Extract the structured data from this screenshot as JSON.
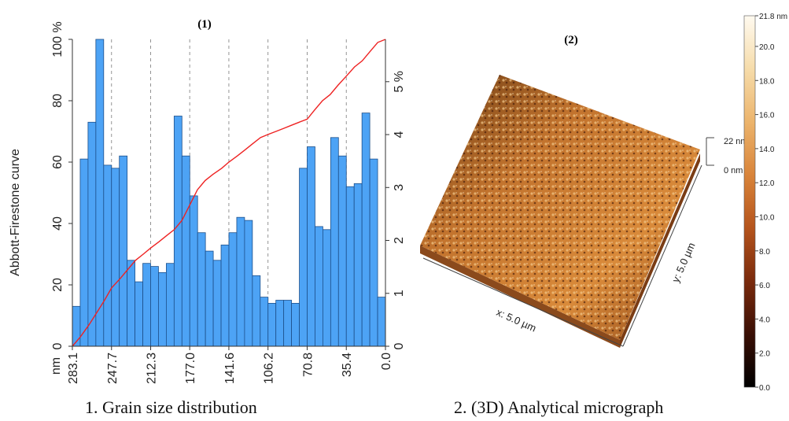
{
  "captions": {
    "left": "1. Grain size distribution",
    "right": "2. (3D) Analytical micrograph"
  },
  "chart_data": [
    {
      "type": "bar",
      "title": "(1)",
      "xlabel": "nm",
      "ylabel": "Abbott-Firestone curve",
      "x_ticks": [
        "283.1",
        "247.7",
        "212.3",
        "177.0",
        "141.6",
        "106.2",
        "70.8",
        "35.4",
        "0.0"
      ],
      "x_range": [
        283.1,
        0.0
      ],
      "left_axis": {
        "unit": "%",
        "ticks": [
          "0",
          "20",
          "40",
          "60",
          "80",
          "100 %"
        ],
        "range": [
          0,
          100
        ]
      },
      "right_axis": {
        "unit": "%",
        "ticks": [
          "0",
          "1",
          "2",
          "3",
          "4",
          "5 %"
        ],
        "range": [
          0,
          5.8
        ]
      },
      "grid": "vertical dashed",
      "bar_color": "#4da3f5",
      "curve_color": "#ee2222",
      "bar_values": [
        13,
        61,
        73,
        100,
        59,
        58,
        62,
        28,
        21,
        27,
        26,
        24,
        27,
        75,
        62,
        49,
        37,
        31,
        28,
        33,
        37,
        42,
        41,
        23,
        16,
        14,
        15,
        15,
        14,
        58,
        65,
        39,
        38,
        68,
        62,
        52,
        53,
        76,
        61,
        16
      ],
      "curve": {
        "x": [
          283.1,
          276,
          268,
          261,
          254,
          247.7,
          240,
          233,
          226,
          219,
          212.3,
          205,
          198,
          191,
          184,
          177.0,
          170,
          163,
          156,
          148,
          141.6,
          134,
          127,
          120,
          113,
          106.2,
          99,
          92,
          85,
          78,
          70.8,
          64,
          57,
          50,
          43,
          35.4,
          28,
          21,
          14,
          7,
          0.0
        ],
        "y": [
          0,
          3,
          7,
          11,
          15,
          19,
          22,
          25,
          28,
          30,
          32,
          34,
          36,
          38,
          41,
          46,
          51,
          54,
          56,
          58,
          60,
          62,
          64,
          66,
          68,
          69,
          70,
          71,
          72,
          73,
          74,
          77,
          80,
          82,
          85,
          88,
          91,
          93,
          96,
          99,
          100
        ]
      }
    }
  ],
  "micrograph": {
    "title": "(2)",
    "x_label": "x: 5.0 µm",
    "y_label": "y: 5.0 µm",
    "z_top_label": "22 nm",
    "z_bottom_label": "0 nm",
    "colorbar": {
      "max_label": "21.8 nm",
      "ticks": [
        "20.0",
        "18.0",
        "16.0",
        "14.0",
        "12.0",
        "10.0",
        "8.0",
        "6.0",
        "4.0",
        "2.0",
        "0.0"
      ],
      "colors": [
        "#000000",
        "#3a0f05",
        "#7a2a0c",
        "#b5541c",
        "#d9843a",
        "#ecb46c",
        "#f6dcaa",
        "#fffaf0"
      ]
    }
  }
}
